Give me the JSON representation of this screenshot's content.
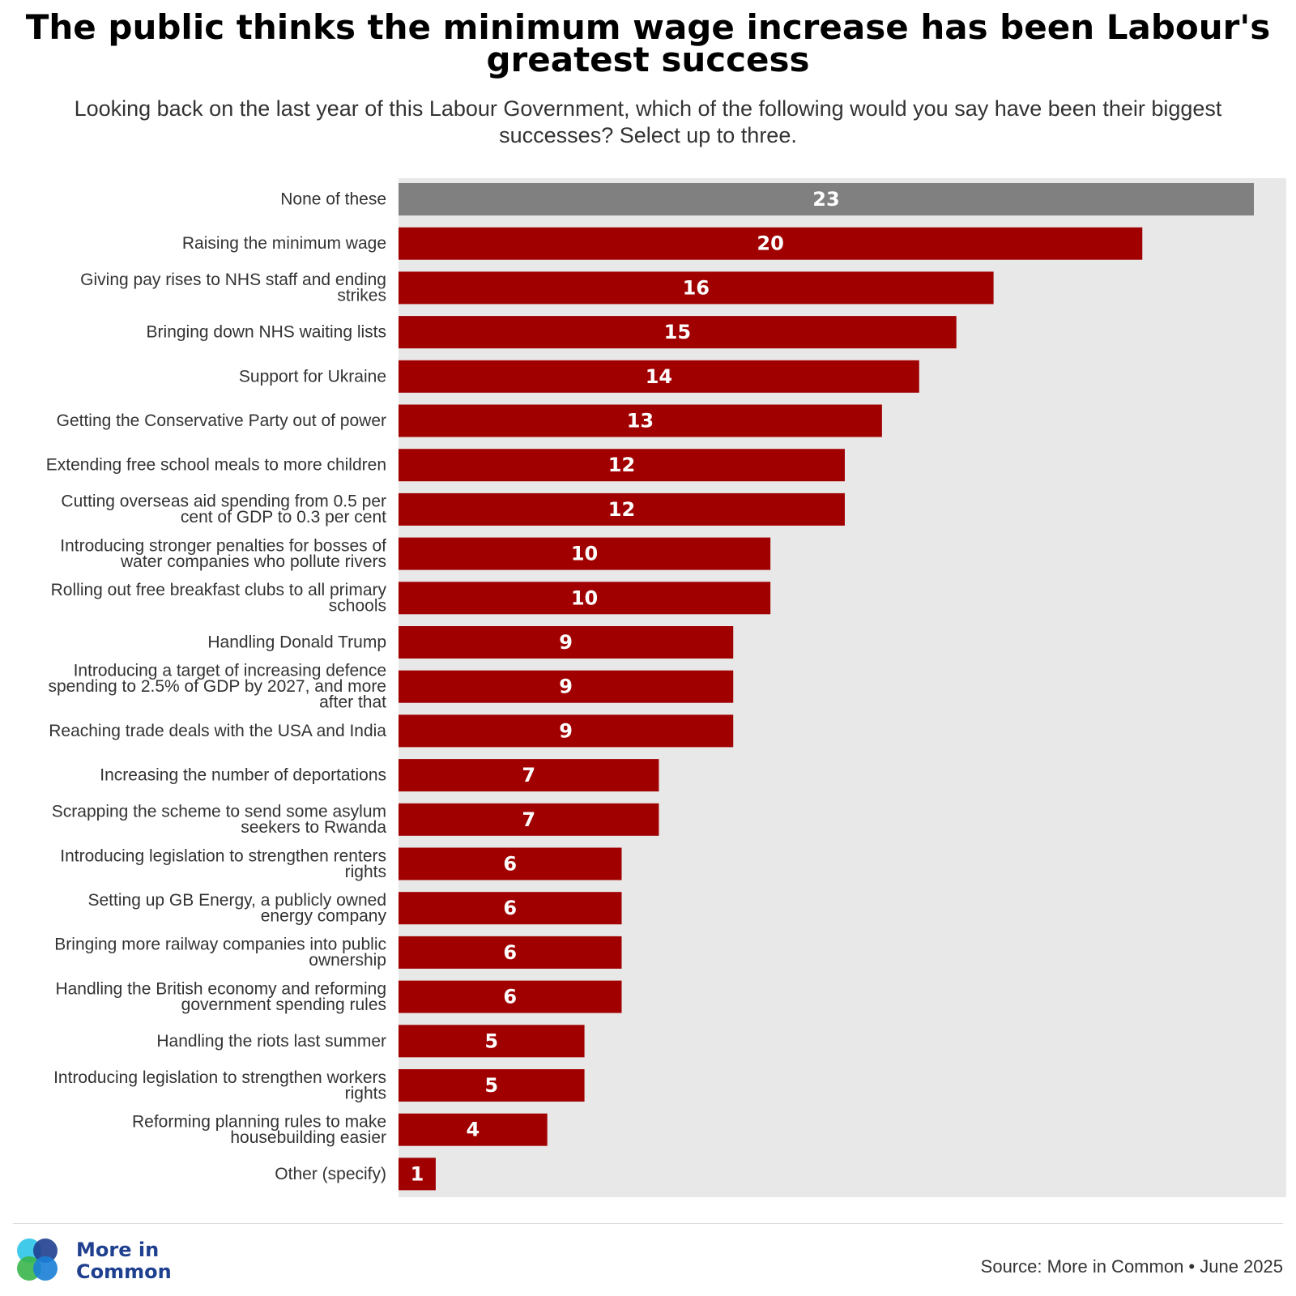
{
  "header": {
    "title": "The public thinks the minimum wage increase has been Labour's greatest success",
    "subtitle": "Looking back on the last year of this Labour Government, which of the following would you say have been their biggest successes? Select up to three."
  },
  "chart_data": {
    "type": "bar",
    "orientation": "horizontal",
    "title": "The public thinks the minimum wage increase has been Labour's greatest success",
    "subtitle": "Looking back on the last year of this Labour Government, which of the following would you say have been their biggest successes? Select up to three.",
    "categories": [
      "None of these",
      "Raising the minimum wage",
      "Giving pay rises to NHS staff and ending strikes",
      "Bringing down NHS waiting lists",
      "Support for Ukraine",
      "Getting the Conservative Party out of power",
      "Extending free school meals to more children",
      "Cutting overseas aid spending from 0.5 per cent of GDP to 0.3 per cent",
      "Introducing stronger penalties for bosses of water companies who pollute rivers",
      "Rolling out free breakfast clubs to all primary schools",
      "Handling Donald Trump",
      "Introducing a target of increasing defence spending to 2.5% of GDP by 2027, and more after that",
      "Reaching trade deals with the USA and India",
      "Increasing the number of deportations",
      "Scrapping the scheme to send some asylum seekers to Rwanda",
      "Introducing legislation to strengthen renters rights",
      "Setting up GB Energy, a publicly owned energy company",
      "Bringing more railway companies into public ownership",
      "Handling the British economy and reforming government spending rules",
      "Handling the riots last summer",
      "Introducing legislation to strengthen workers rights",
      "Reforming planning rules to make housebuilding easier",
      "Other (specify)"
    ],
    "category_lines": [
      [
        "None of these"
      ],
      [
        "Raising the minimum wage"
      ],
      [
        "Giving pay rises to NHS staff and ending",
        "strikes"
      ],
      [
        "Bringing down NHS waiting lists"
      ],
      [
        "Support for Ukraine"
      ],
      [
        "Getting the Conservative Party out of power"
      ],
      [
        "Extending free school meals to more children"
      ],
      [
        "Cutting overseas aid spending from 0.5 per",
        "cent of GDP to 0.3 per cent"
      ],
      [
        "Introducing stronger penalties for bosses of",
        "water companies who pollute rivers"
      ],
      [
        "Rolling out free breakfast clubs to all primary",
        "schools"
      ],
      [
        "Handling Donald Trump"
      ],
      [
        "Introducing a target of increasing defence",
        "spending to 2.5% of GDP by 2027, and more",
        "after that"
      ],
      [
        "Reaching trade deals with the USA and India"
      ],
      [
        "Increasing the number of deportations"
      ],
      [
        "Scrapping the scheme to send some asylum",
        "seekers to Rwanda"
      ],
      [
        "Introducing legislation to strengthen renters",
        "rights"
      ],
      [
        "Setting up GB Energy, a publicly owned",
        "energy company"
      ],
      [
        "Bringing more railway companies into public",
        "ownership"
      ],
      [
        "Handling the British economy and reforming",
        "government spending rules"
      ],
      [
        "Handling the riots last summer"
      ],
      [
        "Introducing legislation to strengthen workers",
        "rights"
      ],
      [
        "Reforming planning rules to make",
        "housebuilding easier"
      ],
      [
        "Other (specify)"
      ]
    ],
    "values": [
      23,
      20,
      16,
      15,
      14,
      13,
      12,
      12,
      10,
      10,
      9,
      9,
      9,
      7,
      7,
      6,
      6,
      6,
      6,
      5,
      5,
      4,
      1
    ],
    "xlim": [
      0,
      24
    ],
    "grid": false,
    "legend": "none",
    "colors": {
      "default_bar": "#a10000",
      "highlight_bar": "#808080",
      "highlight_category": "None of these",
      "plot_background": "#e8e8e8",
      "value_label": "#ffffff"
    }
  },
  "footer": {
    "logo_line1": "More in",
    "logo_line2": "Common",
    "source": "Source: More in Common • June 2025",
    "logo_colors": [
      "#2ec4e8",
      "#1f3f8f",
      "#3ab54a",
      "#1a7fd6"
    ]
  }
}
